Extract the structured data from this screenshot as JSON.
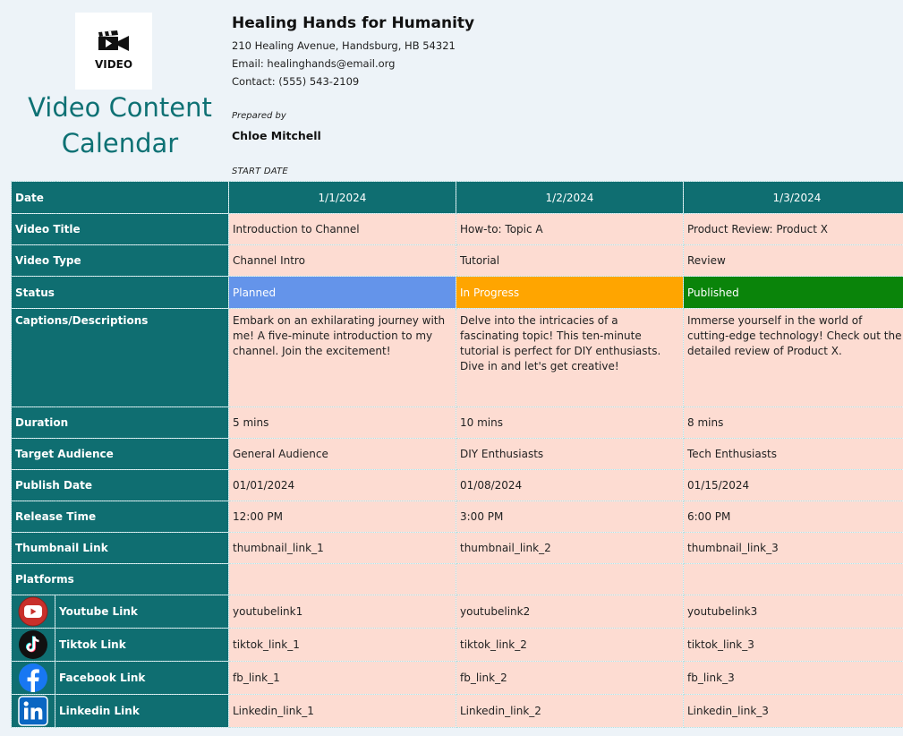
{
  "header": {
    "logo_text": "VIDEO",
    "title_line1": "Video Content",
    "title_line2": "Calendar",
    "org_name": "Healing Hands for Humanity",
    "address": "210 Healing Avenue, Handsburg, HB 54321",
    "email": "Email: healinghands@email.org",
    "contact": "Contact: (555) 543-2109",
    "prepared_by_label": "Prepared by",
    "prepared_by_name": "Chloe Mitchell",
    "start_date_label": "START DATE"
  },
  "colors": {
    "teal": "#0f6e71",
    "cell_bg": "#fddcd2",
    "planned": "#6494ea",
    "in_progress": "#ffa500",
    "published": "#0a840a"
  },
  "rows": {
    "date": {
      "label": "Date",
      "values": [
        "1/1/2024",
        "1/2/2024",
        "1/3/2024"
      ]
    },
    "video_title": {
      "label": "Video Title",
      "values": [
        "Introduction to Channel",
        "How-to: Topic A",
        "Product Review: Product X"
      ]
    },
    "video_type": {
      "label": "Video Type",
      "values": [
        "Channel Intro",
        "Tutorial",
        "Review"
      ]
    },
    "status": {
      "label": "Status",
      "values": [
        "Planned",
        "In Progress",
        "Published"
      ]
    },
    "captions": {
      "label": "Captions/Descriptions",
      "values": [
        "Embark on an exhilarating journey with me! A five-minute introduction to my channel. Join the excitement!",
        "Delve into the intricacies of a fascinating topic! This ten-minute tutorial is perfect for DIY enthusiasts. Dive in and let's get creative!",
        "Immerse yourself in the world of cutting-edge technology! Check out the detailed review of Product X."
      ]
    },
    "duration": {
      "label": "Duration",
      "values": [
        "5 mins",
        "10 mins",
        "8 mins"
      ]
    },
    "target_audience": {
      "label": "Target Audience",
      "values": [
        "General Audience",
        "DIY Enthusiasts",
        "Tech Enthusiasts"
      ]
    },
    "publish_date": {
      "label": "Publish Date",
      "values": [
        "01/01/2024",
        "01/08/2024",
        "01/15/2024"
      ]
    },
    "release_time": {
      "label": "Release Time",
      "values": [
        "12:00 PM",
        "3:00 PM",
        "6:00 PM"
      ]
    },
    "thumbnail_link": {
      "label": "Thumbnail Link",
      "values": [
        "thumbnail_link_1",
        "thumbnail_link_2",
        "thumbnail_link_3"
      ]
    },
    "platforms": {
      "label": "Platforms",
      "values": [
        "",
        "",
        ""
      ]
    },
    "youtube": {
      "label": "Youtube Link",
      "icon": "youtube-icon",
      "values": [
        "youtubelink1",
        "youtubelink2",
        "youtubelink3"
      ]
    },
    "tiktok": {
      "label": "Tiktok Link",
      "icon": "tiktok-icon",
      "values": [
        "tiktok_link_1",
        "tiktok_link_2",
        "tiktok_link_3"
      ]
    },
    "facebook": {
      "label": "Facebook Link",
      "icon": "facebook-icon",
      "values": [
        "fb_link_1",
        "fb_link_2",
        "fb_link_3"
      ]
    },
    "linkedin": {
      "label": "Linkedin Link",
      "icon": "linkedin-icon",
      "values": [
        "Linkedin_link_1",
        "Linkedin_link_2",
        "Linkedin_link_3"
      ]
    }
  }
}
